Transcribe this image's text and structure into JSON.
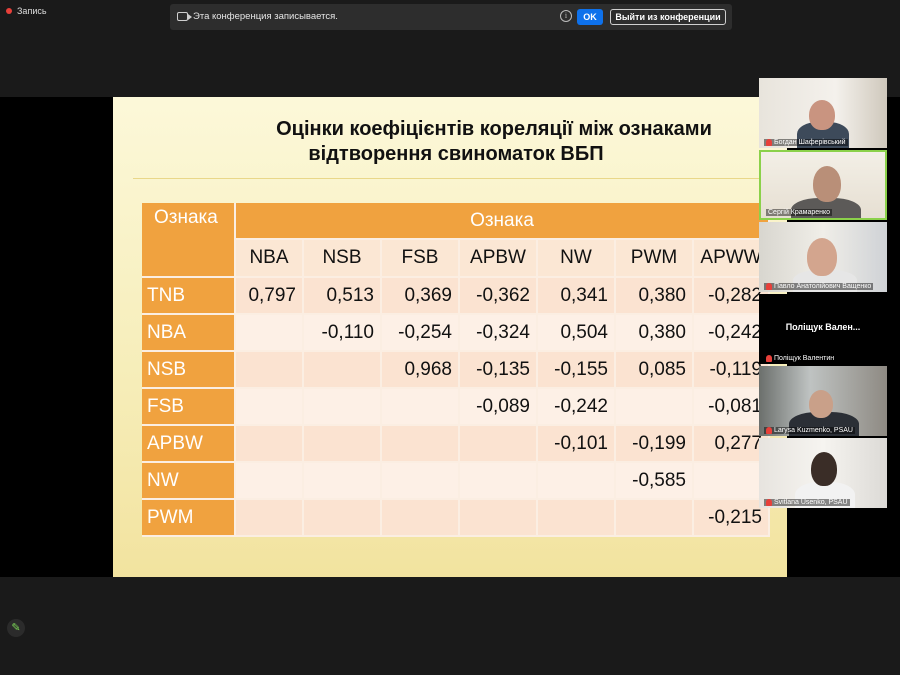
{
  "recording": {
    "label": "Запись"
  },
  "banner": {
    "message": "Эта конференция записывается.",
    "ok_label": "OK",
    "leave_label": "Выйти из конференции"
  },
  "slide": {
    "title_line1": "Оцінки коефіцієнтів кореляції між ознаками",
    "title_line2": "відтворення свиноматок ВБП",
    "corner_label": "Ознака",
    "group_label": "Ознака",
    "columns": [
      "NBA",
      "NSB",
      "FSB",
      "APBW",
      "NW",
      "PWM",
      "APWW"
    ],
    "rows": [
      {
        "label": "TNB",
        "values": [
          "0,797",
          "0,513",
          "0,369",
          "-0,362",
          "0,341",
          "0,380",
          "-0,282"
        ]
      },
      {
        "label": "NBA",
        "values": [
          "",
          "-0,110",
          "-0,254",
          "-0,324",
          "0,504",
          "0,380",
          "-0,242"
        ]
      },
      {
        "label": "NSB",
        "values": [
          "",
          "",
          "0,968",
          "-0,135",
          "-0,155",
          "0,085",
          "-0,119"
        ]
      },
      {
        "label": "FSB",
        "values": [
          "",
          "",
          "",
          "-0,089",
          "-0,242",
          "",
          "-0,081"
        ]
      },
      {
        "label": "APBW",
        "values": [
          "",
          "",
          "",
          "",
          "-0,101",
          "-0,199",
          "0,277"
        ]
      },
      {
        "label": "NW",
        "values": [
          "",
          "",
          "",
          "",
          "",
          "-0,585",
          ""
        ]
      },
      {
        "label": "PWM",
        "values": [
          "",
          "",
          "",
          "",
          "",
          "",
          "-0,215"
        ]
      }
    ]
  },
  "participants": [
    {
      "name": "Богдан Шаферівський",
      "video": true
    },
    {
      "name": "Сергій Крамаренко",
      "video": true,
      "active": true
    },
    {
      "name": "Павло Анатолійович Ващенко",
      "video": true
    },
    {
      "name": "Поліщук Валентин",
      "video": false,
      "display": "Поліщук Вален..."
    },
    {
      "name": "Larysa Kuzmenko, PSAU",
      "video": true
    },
    {
      "name": "Svitlana Usenko, PSAU",
      "video": true
    }
  ],
  "colors": {
    "header_orange": "#f0a23f",
    "ok_blue": "#0e71eb",
    "active_border": "#8bd14a"
  }
}
